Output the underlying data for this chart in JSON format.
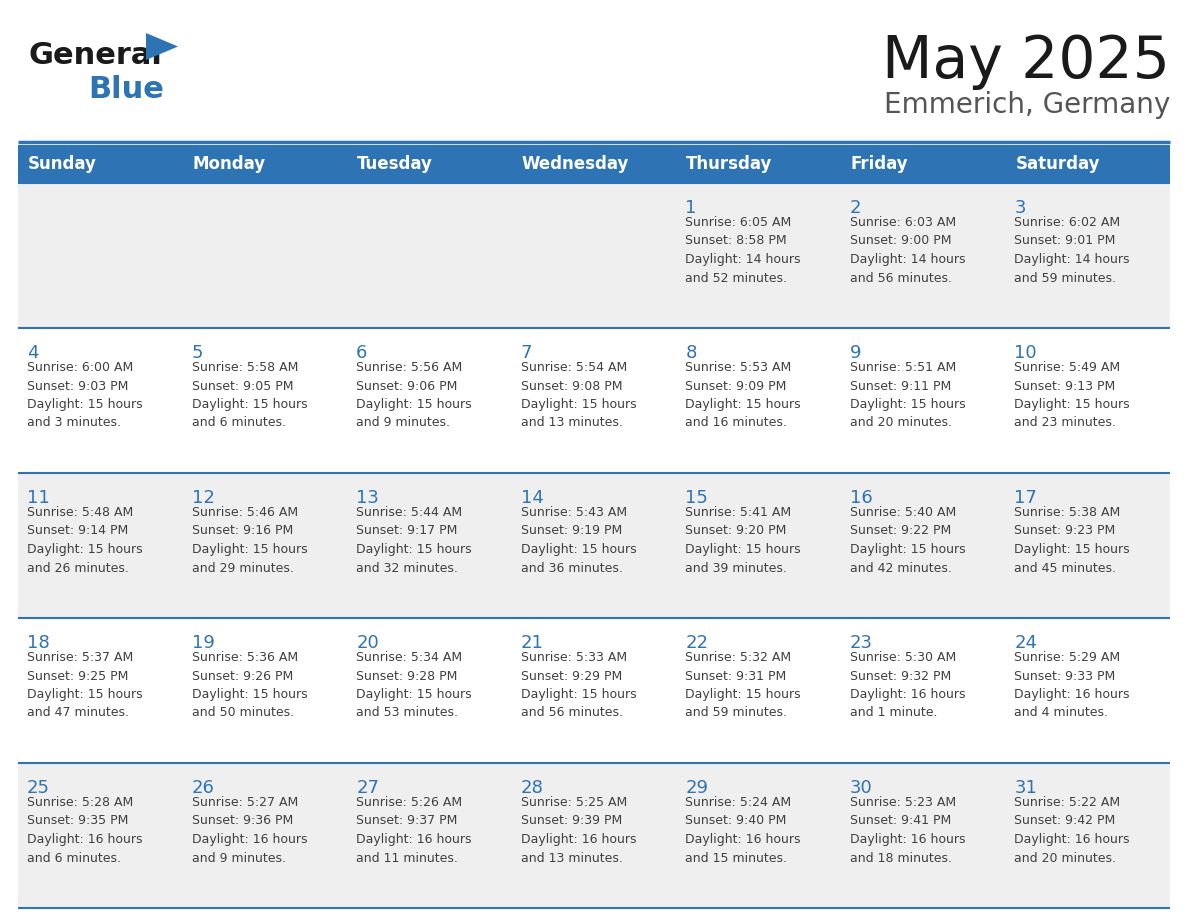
{
  "title": "May 2025",
  "subtitle": "Emmerich, Germany",
  "header_bg": "#2E74B5",
  "header_text_color": "#FFFFFF",
  "days_of_week": [
    "Sunday",
    "Monday",
    "Tuesday",
    "Wednesday",
    "Thursday",
    "Friday",
    "Saturday"
  ],
  "row_bg": [
    "#EFEFEF",
    "#FFFFFF",
    "#EFEFEF",
    "#FFFFFF",
    "#EFEFEF"
  ],
  "separator_color": "#2E74B5",
  "cell_text_color": "#404040",
  "day_number_color": "#2E74B5",
  "calendar_data": [
    [
      {
        "day": null,
        "info": null
      },
      {
        "day": null,
        "info": null
      },
      {
        "day": null,
        "info": null
      },
      {
        "day": null,
        "info": null
      },
      {
        "day": 1,
        "info": "Sunrise: 6:05 AM\nSunset: 8:58 PM\nDaylight: 14 hours\nand 52 minutes."
      },
      {
        "day": 2,
        "info": "Sunrise: 6:03 AM\nSunset: 9:00 PM\nDaylight: 14 hours\nand 56 minutes."
      },
      {
        "day": 3,
        "info": "Sunrise: 6:02 AM\nSunset: 9:01 PM\nDaylight: 14 hours\nand 59 minutes."
      }
    ],
    [
      {
        "day": 4,
        "info": "Sunrise: 6:00 AM\nSunset: 9:03 PM\nDaylight: 15 hours\nand 3 minutes."
      },
      {
        "day": 5,
        "info": "Sunrise: 5:58 AM\nSunset: 9:05 PM\nDaylight: 15 hours\nand 6 minutes."
      },
      {
        "day": 6,
        "info": "Sunrise: 5:56 AM\nSunset: 9:06 PM\nDaylight: 15 hours\nand 9 minutes."
      },
      {
        "day": 7,
        "info": "Sunrise: 5:54 AM\nSunset: 9:08 PM\nDaylight: 15 hours\nand 13 minutes."
      },
      {
        "day": 8,
        "info": "Sunrise: 5:53 AM\nSunset: 9:09 PM\nDaylight: 15 hours\nand 16 minutes."
      },
      {
        "day": 9,
        "info": "Sunrise: 5:51 AM\nSunset: 9:11 PM\nDaylight: 15 hours\nand 20 minutes."
      },
      {
        "day": 10,
        "info": "Sunrise: 5:49 AM\nSunset: 9:13 PM\nDaylight: 15 hours\nand 23 minutes."
      }
    ],
    [
      {
        "day": 11,
        "info": "Sunrise: 5:48 AM\nSunset: 9:14 PM\nDaylight: 15 hours\nand 26 minutes."
      },
      {
        "day": 12,
        "info": "Sunrise: 5:46 AM\nSunset: 9:16 PM\nDaylight: 15 hours\nand 29 minutes."
      },
      {
        "day": 13,
        "info": "Sunrise: 5:44 AM\nSunset: 9:17 PM\nDaylight: 15 hours\nand 32 minutes."
      },
      {
        "day": 14,
        "info": "Sunrise: 5:43 AM\nSunset: 9:19 PM\nDaylight: 15 hours\nand 36 minutes."
      },
      {
        "day": 15,
        "info": "Sunrise: 5:41 AM\nSunset: 9:20 PM\nDaylight: 15 hours\nand 39 minutes."
      },
      {
        "day": 16,
        "info": "Sunrise: 5:40 AM\nSunset: 9:22 PM\nDaylight: 15 hours\nand 42 minutes."
      },
      {
        "day": 17,
        "info": "Sunrise: 5:38 AM\nSunset: 9:23 PM\nDaylight: 15 hours\nand 45 minutes."
      }
    ],
    [
      {
        "day": 18,
        "info": "Sunrise: 5:37 AM\nSunset: 9:25 PM\nDaylight: 15 hours\nand 47 minutes."
      },
      {
        "day": 19,
        "info": "Sunrise: 5:36 AM\nSunset: 9:26 PM\nDaylight: 15 hours\nand 50 minutes."
      },
      {
        "day": 20,
        "info": "Sunrise: 5:34 AM\nSunset: 9:28 PM\nDaylight: 15 hours\nand 53 minutes."
      },
      {
        "day": 21,
        "info": "Sunrise: 5:33 AM\nSunset: 9:29 PM\nDaylight: 15 hours\nand 56 minutes."
      },
      {
        "day": 22,
        "info": "Sunrise: 5:32 AM\nSunset: 9:31 PM\nDaylight: 15 hours\nand 59 minutes."
      },
      {
        "day": 23,
        "info": "Sunrise: 5:30 AM\nSunset: 9:32 PM\nDaylight: 16 hours\nand 1 minute."
      },
      {
        "day": 24,
        "info": "Sunrise: 5:29 AM\nSunset: 9:33 PM\nDaylight: 16 hours\nand 4 minutes."
      }
    ],
    [
      {
        "day": 25,
        "info": "Sunrise: 5:28 AM\nSunset: 9:35 PM\nDaylight: 16 hours\nand 6 minutes."
      },
      {
        "day": 26,
        "info": "Sunrise: 5:27 AM\nSunset: 9:36 PM\nDaylight: 16 hours\nand 9 minutes."
      },
      {
        "day": 27,
        "info": "Sunrise: 5:26 AM\nSunset: 9:37 PM\nDaylight: 16 hours\nand 11 minutes."
      },
      {
        "day": 28,
        "info": "Sunrise: 5:25 AM\nSunset: 9:39 PM\nDaylight: 16 hours\nand 13 minutes."
      },
      {
        "day": 29,
        "info": "Sunrise: 5:24 AM\nSunset: 9:40 PM\nDaylight: 16 hours\nand 15 minutes."
      },
      {
        "day": 30,
        "info": "Sunrise: 5:23 AM\nSunset: 9:41 PM\nDaylight: 16 hours\nand 18 minutes."
      },
      {
        "day": 31,
        "info": "Sunrise: 5:22 AM\nSunset: 9:42 PM\nDaylight: 16 hours\nand 20 minutes."
      }
    ]
  ]
}
